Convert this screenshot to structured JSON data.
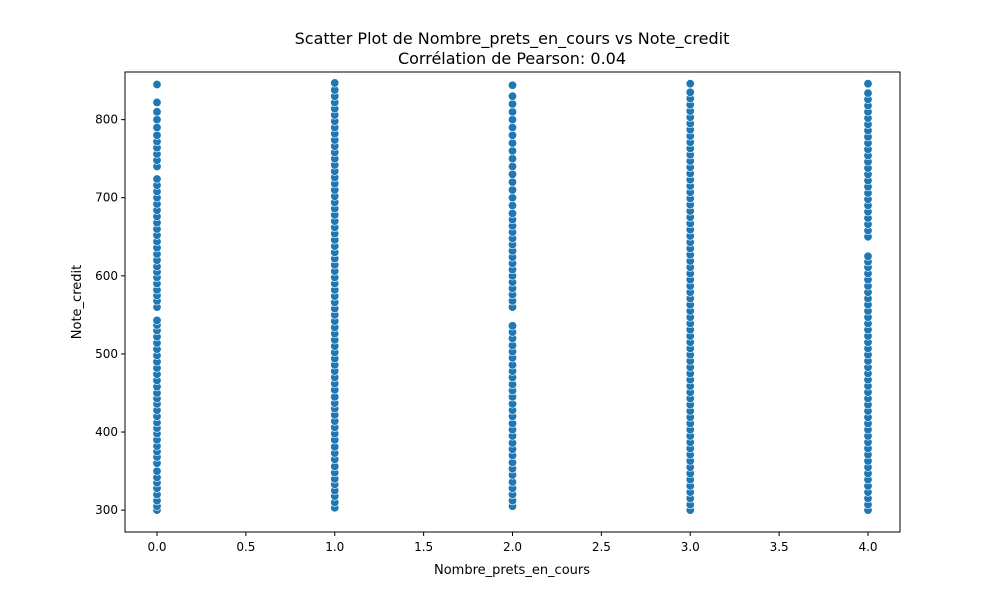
{
  "chart_data": {
    "type": "scatter",
    "title": "Scatter Plot de Nombre_prets_en_cours vs Note_credit",
    "subtitle": "Corrélation de Pearson: 0.04",
    "xlabel": "Nombre_prets_en_cours",
    "ylabel": "Note_credit",
    "xlim": [
      -0.18,
      4.18
    ],
    "ylim": [
      272,
      861
    ],
    "xticks": [
      0.0,
      0.5,
      1.0,
      1.5,
      2.0,
      2.5,
      3.0,
      3.5,
      4.0
    ],
    "xtick_labels": [
      "0.0",
      "0.5",
      "1.0",
      "1.5",
      "2.0",
      "2.5",
      "3.0",
      "3.5",
      "4.0"
    ],
    "yticks": [
      300,
      400,
      500,
      600,
      700,
      800
    ],
    "ytick_labels": [
      "300",
      "400",
      "500",
      "600",
      "700",
      "800"
    ],
    "grid": false,
    "marker_color": "#1f77b4",
    "series": [
      {
        "x_value": 0,
        "y": [
          300,
          305,
          312,
          320,
          328,
          335,
          342,
          350,
          360,
          368,
          375,
          382,
          390,
          398,
          405,
          412,
          420,
          428,
          436,
          443,
          450,
          458,
          466,
          474,
          482,
          490,
          498,
          506,
          514,
          522,
          530,
          537,
          543,
          560,
          568,
          575,
          582,
          590,
          598,
          605,
          612,
          620,
          628,
          636,
          644,
          652,
          660,
          668,
          676,
          684,
          692,
          700,
          708,
          716,
          724,
          740,
          748,
          756,
          764,
          772,
          780,
          790,
          800,
          810,
          822,
          845
        ]
      },
      {
        "x_value": 1,
        "y": [
          303,
          310,
          318,
          325,
          333,
          340,
          348,
          356,
          365,
          373,
          381,
          390,
          398,
          406,
          414,
          422,
          430,
          437,
          445,
          454,
          462,
          470,
          478,
          486,
          494,
          502,
          510,
          518,
          526,
          534,
          542,
          550,
          558,
          566,
          574,
          582,
          590,
          598,
          606,
          614,
          622,
          630,
          638,
          646,
          654,
          662,
          670,
          678,
          686,
          694,
          702,
          710,
          718,
          726,
          734,
          742,
          750,
          758,
          766,
          774,
          782,
          790,
          798,
          806,
          814,
          822,
          830,
          838,
          847
        ]
      },
      {
        "x_value": 2,
        "y": [
          305,
          312,
          320,
          328,
          336,
          345,
          353,
          361,
          370,
          378,
          386,
          395,
          403,
          411,
          420,
          428,
          436,
          445,
          453,
          461,
          470,
          478,
          486,
          495,
          503,
          511,
          520,
          528,
          536,
          560,
          568,
          576,
          584,
          592,
          600,
          608,
          616,
          624,
          632,
          640,
          648,
          656,
          664,
          672,
          680,
          690,
          700,
          710,
          720,
          730,
          740,
          750,
          760,
          770,
          780,
          790,
          800,
          810,
          820,
          830,
          844
        ]
      },
      {
        "x_value": 3,
        "y": [
          300,
          307,
          315,
          323,
          331,
          339,
          347,
          355,
          363,
          371,
          379,
          387,
          395,
          403,
          411,
          419,
          427,
          435,
          443,
          451,
          459,
          467,
          475,
          483,
          491,
          499,
          507,
          515,
          523,
          531,
          539,
          547,
          555,
          563,
          571,
          579,
          587,
          595,
          603,
          611,
          619,
          627,
          635,
          643,
          651,
          659,
          667,
          675,
          683,
          691,
          699,
          707,
          715,
          723,
          731,
          739,
          747,
          755,
          763,
          771,
          779,
          787,
          795,
          803,
          811,
          819,
          827,
          835,
          846
        ]
      },
      {
        "x_value": 4,
        "y": [
          300,
          307,
          315,
          323,
          331,
          339,
          347,
          355,
          363,
          371,
          379,
          387,
          395,
          403,
          411,
          419,
          427,
          435,
          443,
          451,
          459,
          467,
          475,
          483,
          491,
          499,
          507,
          515,
          523,
          531,
          539,
          547,
          555,
          563,
          571,
          579,
          587,
          595,
          603,
          611,
          618,
          625,
          650,
          658,
          666,
          674,
          682,
          690,
          698,
          706,
          714,
          722,
          730,
          738,
          746,
          754,
          762,
          770,
          778,
          786,
          794,
          802,
          810,
          818,
          826,
          834,
          846
        ]
      }
    ]
  }
}
